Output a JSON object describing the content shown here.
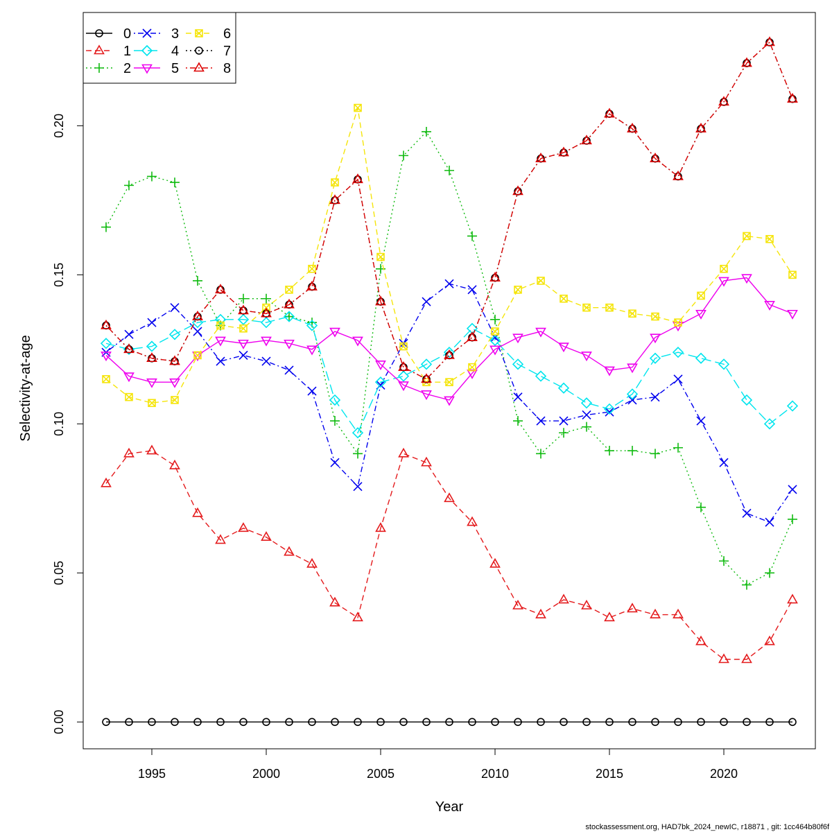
{
  "chart_data": {
    "type": "line",
    "xlabel": "Year",
    "ylabel": "Selectivity-at-age",
    "xlim": [
      1992,
      2024
    ],
    "ylim": [
      -0.009,
      0.238
    ],
    "x_ticks": [
      1995,
      2000,
      2005,
      2010,
      2015,
      2020
    ],
    "y_ticks": [
      0.0,
      0.05,
      0.1,
      0.15,
      0.2
    ],
    "y_tick_labels": [
      "0.00",
      "0.05",
      "0.10",
      "0.15",
      "0.20"
    ],
    "grid": false,
    "legend_position": "top-left",
    "footer": "stockassessment.org, HAD7bk_2024_newIC, r18871 , git: 1cc464b80f6f",
    "x": [
      1993,
      1994,
      1995,
      1996,
      1997,
      1998,
      1999,
      2000,
      2001,
      2002,
      2003,
      2004,
      2005,
      2006,
      2007,
      2008,
      2009,
      2010,
      2011,
      2012,
      2013,
      2014,
      2015,
      2016,
      2017,
      2018,
      2019,
      2020,
      2021,
      2022,
      2023
    ],
    "series": [
      {
        "name": "0",
        "color": "#000000",
        "marker": "circle",
        "dash": "solid",
        "values": [
          0,
          0,
          0,
          0,
          0,
          0,
          0,
          0,
          0,
          0,
          0,
          0,
          0,
          0,
          0,
          0,
          0,
          0,
          0,
          0,
          0,
          0,
          0,
          0,
          0,
          0,
          0,
          0,
          0,
          0,
          0
        ]
      },
      {
        "name": "1",
        "color": "#e41a1c",
        "marker": "triangle",
        "dash": "dashed",
        "values": [
          0.08,
          0.09,
          0.091,
          0.086,
          0.07,
          0.061,
          0.065,
          0.062,
          0.057,
          0.053,
          0.04,
          0.035,
          0.065,
          0.09,
          0.087,
          0.075,
          0.067,
          0.053,
          0.039,
          0.036,
          0.041,
          0.039,
          0.035,
          0.038,
          0.036,
          0.036,
          0.027,
          0.021,
          0.021,
          0.027,
          0.041
        ]
      },
      {
        "name": "2",
        "color": "#11bb11",
        "marker": "plus",
        "dash": "dotted",
        "values": [
          0.166,
          0.18,
          0.183,
          0.181,
          0.148,
          0.133,
          0.142,
          0.142,
          0.136,
          0.134,
          0.101,
          0.09,
          0.152,
          0.19,
          0.198,
          0.185,
          0.163,
          0.135,
          0.101,
          0.09,
          0.097,
          0.099,
          0.091,
          0.091,
          0.09,
          0.092,
          0.072,
          0.054,
          0.046,
          0.05,
          0.068
        ]
      },
      {
        "name": "3",
        "color": "#0000ee",
        "marker": "cross",
        "dash": "dotdash",
        "values": [
          0.124,
          0.13,
          0.134,
          0.139,
          0.131,
          0.121,
          0.123,
          0.121,
          0.118,
          0.111,
          0.087,
          0.079,
          0.113,
          0.127,
          0.141,
          0.147,
          0.145,
          0.129,
          0.109,
          0.101,
          0.101,
          0.103,
          0.104,
          0.108,
          0.109,
          0.115,
          0.101,
          0.087,
          0.07,
          0.067,
          0.078
        ]
      },
      {
        "name": "4",
        "color": "#00e5ee",
        "marker": "diamond",
        "dash": "longdash",
        "values": [
          0.127,
          0.125,
          0.126,
          0.13,
          0.134,
          0.135,
          0.135,
          0.134,
          0.136,
          0.133,
          0.108,
          0.097,
          0.114,
          0.116,
          0.12,
          0.124,
          0.132,
          0.128,
          0.12,
          0.116,
          0.112,
          0.107,
          0.105,
          0.11,
          0.122,
          0.124,
          0.122,
          0.12,
          0.108,
          0.1,
          0.106
        ]
      },
      {
        "name": "5",
        "color": "#ee00ee",
        "marker": "triangle-down",
        "dash": "solid",
        "values": [
          0.123,
          0.116,
          0.114,
          0.114,
          0.123,
          0.128,
          0.127,
          0.128,
          0.127,
          0.125,
          0.131,
          0.128,
          0.12,
          0.113,
          0.11,
          0.108,
          0.117,
          0.125,
          0.129,
          0.131,
          0.126,
          0.123,
          0.118,
          0.119,
          0.129,
          0.133,
          0.137,
          0.148,
          0.149,
          0.14,
          0.137
        ]
      },
      {
        "name": "6",
        "color": "#f5e50a",
        "marker": "square-x",
        "dash": "dashed",
        "values": [
          0.115,
          0.109,
          0.107,
          0.108,
          0.123,
          0.133,
          0.132,
          0.139,
          0.145,
          0.152,
          0.181,
          0.206,
          0.156,
          0.126,
          0.114,
          0.114,
          0.119,
          0.131,
          0.145,
          0.148,
          0.142,
          0.139,
          0.139,
          0.137,
          0.136,
          0.134,
          0.143,
          0.152,
          0.163,
          0.162,
          0.15
        ]
      },
      {
        "name": "7",
        "color": "#000000",
        "marker": "circle",
        "dash": "dotted",
        "values": [
          0.133,
          0.125,
          0.122,
          0.121,
          0.136,
          0.145,
          0.138,
          0.137,
          0.14,
          0.146,
          0.175,
          0.182,
          0.141,
          0.119,
          0.115,
          0.123,
          0.129,
          0.149,
          0.178,
          0.189,
          0.191,
          0.195,
          0.204,
          0.199,
          0.189,
          0.183,
          0.199,
          0.208,
          0.221,
          0.228,
          0.209
        ]
      },
      {
        "name": "8",
        "color": "#dd0000",
        "marker": "triangle",
        "dash": "dotdash",
        "values": [
          0.133,
          0.125,
          0.122,
          0.121,
          0.136,
          0.145,
          0.138,
          0.137,
          0.14,
          0.146,
          0.175,
          0.182,
          0.141,
          0.119,
          0.115,
          0.123,
          0.129,
          0.149,
          0.178,
          0.189,
          0.191,
          0.195,
          0.204,
          0.199,
          0.189,
          0.183,
          0.199,
          0.208,
          0.221,
          0.228,
          0.209
        ]
      }
    ]
  }
}
